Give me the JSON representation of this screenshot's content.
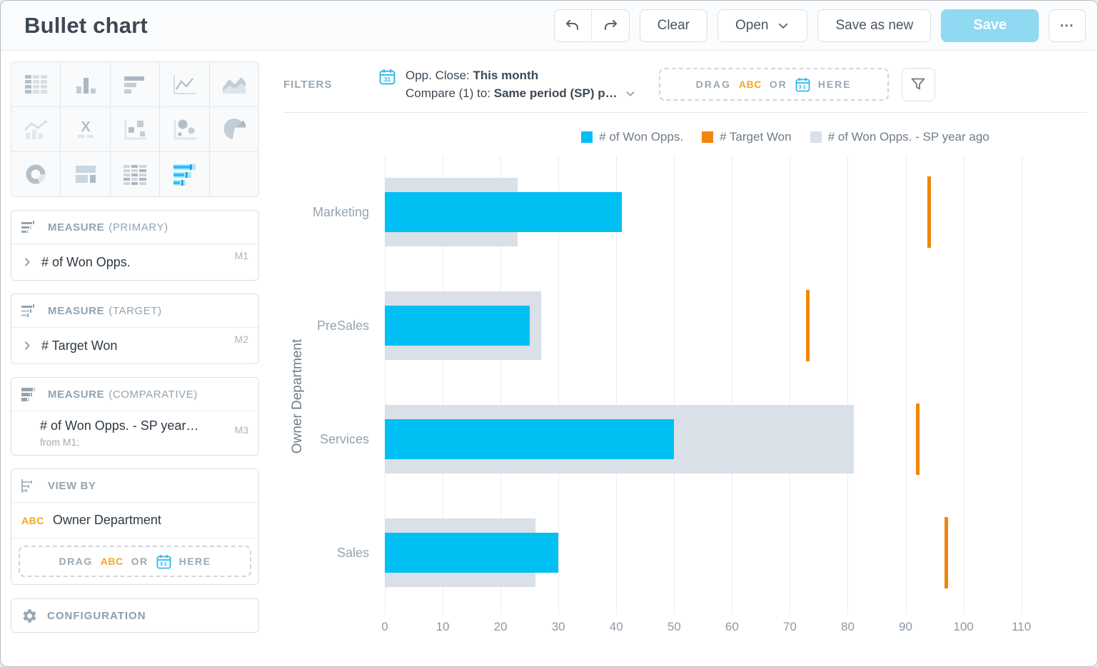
{
  "icons": {
    "gear": "⚙",
    "more": "⋯",
    "calendar_day": "31"
  },
  "header": {
    "title": "Bullet chart",
    "clear_label": "Clear",
    "open_label": "Open",
    "save_as_new_label": "Save as new",
    "save_label": "Save"
  },
  "sidebar": {
    "picker_selected": "bullet-chart",
    "panels": {
      "primary": {
        "title": "MEASURE",
        "subtitle": "(PRIMARY)",
        "item": "# of Won Opps.",
        "tag": "M1"
      },
      "target": {
        "title": "MEASURE",
        "subtitle": "(TARGET)",
        "item": "# Target Won",
        "tag": "M2"
      },
      "comparative": {
        "title": "MEASURE",
        "subtitle": "(COMPARATIVE)",
        "item": "# of Won Opps. - SP year…",
        "tag": "M3",
        "note": "from M1;"
      },
      "view_by": {
        "title": "VIEW BY",
        "abc": "ABC",
        "item": "Owner Department"
      }
    },
    "configuration_label": "CONFIGURATION"
  },
  "dropzone": {
    "drag": "DRAG",
    "abc": "ABC",
    "or": "OR",
    "here": "HERE"
  },
  "filters": {
    "label": "FILTERS",
    "line1_prefix": "Opp. Close: ",
    "line1_value": "This month",
    "line2_prefix": "Compare (1) to: ",
    "line2_value": "Same period (SP) p…"
  },
  "chart_data": {
    "type": "bullet",
    "orientation": "horizontal",
    "categories": [
      "Marketing",
      "PreSales",
      "Services",
      "Sales"
    ],
    "series": [
      {
        "name": "# of Won Opps.",
        "role": "primary",
        "color": "#00bff3",
        "values": [
          41,
          25,
          50,
          30
        ]
      },
      {
        "name": "# Target Won",
        "role": "target",
        "color": "#f0860c",
        "values": [
          94,
          73,
          92,
          97
        ]
      },
      {
        "name": "# of Won Opps. - SP year ago",
        "role": "comparative",
        "color": "#d9e0e7",
        "values": [
          23,
          27,
          81,
          26
        ]
      }
    ],
    "ylabel": "Owner Department",
    "xlabel": "",
    "xticks": [
      0,
      10,
      20,
      30,
      40,
      50,
      60,
      70,
      80,
      90,
      100,
      110
    ],
    "xlim": [
      0,
      113.5
    ],
    "grid": true,
    "legend_position": "top"
  }
}
